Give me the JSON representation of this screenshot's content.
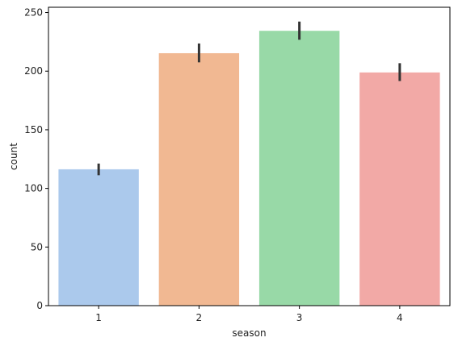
{
  "chart_data": {
    "type": "bar",
    "title": "",
    "xlabel": "season",
    "ylabel": "count",
    "categories": [
      "1",
      "2",
      "3",
      "4"
    ],
    "values": [
      116.3,
      215.3,
      234.4,
      198.9
    ],
    "error_bars": [
      {
        "low": 111.2,
        "high": 121.2
      },
      {
        "low": 207.5,
        "high": 223.6
      },
      {
        "low": 226.8,
        "high": 242.3
      },
      {
        "low": 191.6,
        "high": 206.8
      }
    ],
    "ylim": [
      0,
      254.5
    ],
    "yticks": [
      0,
      50,
      100,
      150,
      200,
      250
    ],
    "grid": false,
    "legend": "none",
    "colors": [
      "#abc9ec",
      "#f1b892",
      "#98d9a7",
      "#f2a9a6"
    ],
    "error_color": "#333333"
  }
}
